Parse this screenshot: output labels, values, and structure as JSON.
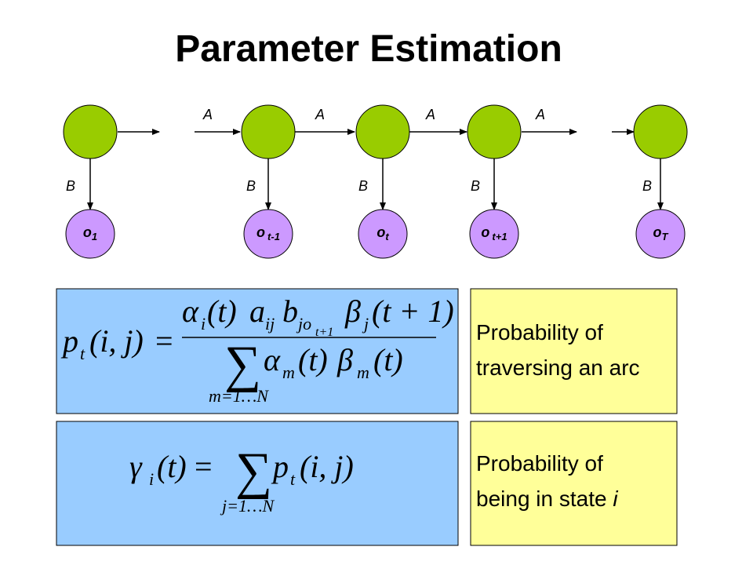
{
  "title": "Parameter Estimation",
  "transition_labels": [
    "A",
    "A",
    "A",
    "A"
  ],
  "emission_labels": [
    "B",
    "B",
    "B",
    "B",
    "B"
  ],
  "observations": [
    {
      "base": "o",
      "sub": "1"
    },
    {
      "base": "o",
      "sub": "t-1"
    },
    {
      "base": "o",
      "sub": "t"
    },
    {
      "base": "o",
      "sub": "t+1"
    },
    {
      "base": "o",
      "sub": "T"
    }
  ],
  "formula_1": {
    "lhs": [
      "p",
      "t",
      "(i, j)",
      "="
    ],
    "numerator": [
      "α",
      "i",
      "(t)",
      "a",
      "ij",
      "b",
      "jo",
      "t+1",
      "β",
      "j",
      "(t + 1)"
    ],
    "denominator": [
      "∑",
      "m=1…N",
      "α",
      "m",
      "(t)",
      "β",
      "m",
      "(t)"
    ]
  },
  "formula_2": {
    "lhs": [
      "γ",
      "i",
      "(t)",
      "="
    ],
    "sum": "∑",
    "sum_range": "j=1…N",
    "rhs": [
      "p",
      "t",
      "(i, j)"
    ]
  },
  "descriptions": [
    {
      "lines": [
        "Probability of",
        "traversing an arc"
      ]
    },
    {
      "lines": [
        "Probability of",
        "being in state"
      ],
      "var": "i"
    }
  ]
}
